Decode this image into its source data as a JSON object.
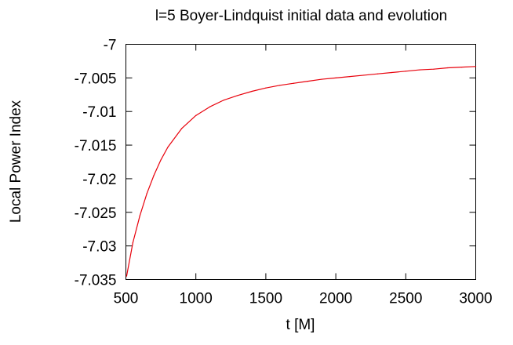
{
  "chart_data": {
    "type": "line",
    "title": "l=5 Boyer-Lindquist initial data and evolution",
    "xlabel": "t [M]",
    "ylabel": "Local Power Index",
    "xlim": [
      500,
      3000
    ],
    "ylim": [
      -7.035,
      -7.0
    ],
    "x_ticks": [
      500,
      1000,
      1500,
      2000,
      2500,
      3000
    ],
    "x_tick_labels": [
      "500",
      "1000",
      "1500",
      "2000",
      "2500",
      "3000"
    ],
    "y_ticks": [
      -7.035,
      -7.03,
      -7.025,
      -7.02,
      -7.015,
      -7.01,
      -7.005,
      -7.0
    ],
    "y_tick_labels": [
      "-7.035",
      "-7.03",
      "-7.025",
      "-7.02",
      "-7.015",
      "-7.01",
      "-7.005",
      "-7"
    ],
    "grid": false,
    "legend": "none",
    "series": [
      {
        "color": "#e8000b",
        "x": [
          505,
          550,
          600,
          650,
          700,
          750,
          800,
          900,
          1000,
          1100,
          1200,
          1300,
          1400,
          1500,
          1600,
          1700,
          1800,
          1900,
          2000,
          2100,
          2200,
          2300,
          2400,
          2500,
          2600,
          2700,
          2800,
          2900,
          3000
        ],
        "y": [
          -7.0345,
          -7.0295,
          -7.0255,
          -7.0222,
          -7.0195,
          -7.0172,
          -7.0153,
          -7.0125,
          -7.0106,
          -7.0093,
          -7.0083,
          -7.0076,
          -7.007,
          -7.0065,
          -7.0061,
          -7.0058,
          -7.0055,
          -7.0052,
          -7.005,
          -7.0048,
          -7.0046,
          -7.0044,
          -7.0042,
          -7.004,
          -7.0038,
          -7.0037,
          -7.0035,
          -7.0034,
          -7.0033
        ]
      }
    ]
  }
}
